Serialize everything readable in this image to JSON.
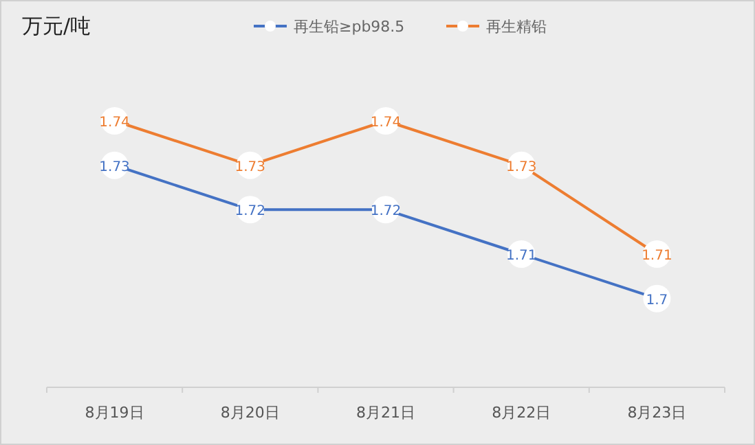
{
  "chart_data": {
    "type": "line",
    "ylabel": "万元/吨",
    "categories": [
      "8月19日",
      "8月20日",
      "8月21日",
      "8月22日",
      "8月23日"
    ],
    "series": [
      {
        "name": "再生铅≥pb98.5",
        "color": "#4472c4",
        "values": [
          1.73,
          1.72,
          1.72,
          1.71,
          1.7
        ]
      },
      {
        "name": "再生精铅",
        "color": "#ed7d31",
        "values": [
          1.74,
          1.73,
          1.74,
          1.73,
          1.71
        ]
      }
    ],
    "relative": false,
    "data_labels": true,
    "legend": "top",
    "marker": "circle",
    "grid": false
  }
}
